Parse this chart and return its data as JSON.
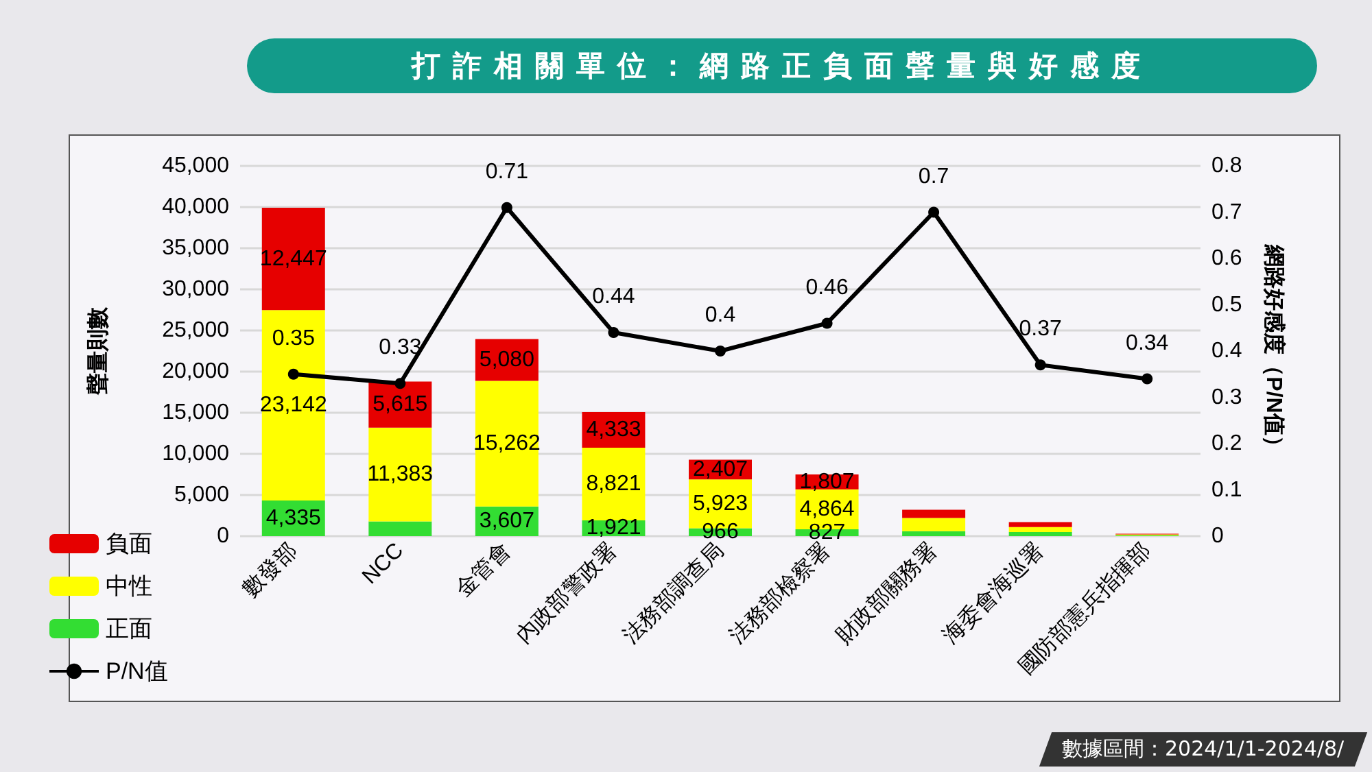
{
  "chart_data": {
    "type": "bar",
    "title": "打詐相關單位：網路正負面聲量與好感度",
    "ylabel": "聲量則數",
    "y2label": "網路好感度（P/N值）",
    "annotations": [
      "數據區間：2024/1/1-2024/8/"
    ],
    "categories": [
      "數發部",
      "NCC",
      "金管會",
      "內政部警政署",
      "法務部調查局",
      "法務部檢察署",
      "財政部關務署",
      "海委會海巡署",
      "國防部憲兵指揮部"
    ],
    "stacked": true,
    "series": [
      {
        "name": "正面",
        "color": "#33dd33",
        "values": [
          4335,
          1800,
          3607,
          1921,
          966,
          827,
          600,
          500,
          100
        ],
        "value_labels": [
          "4,335",
          null,
          "3,607",
          "1,921",
          "966",
          "827",
          null,
          null,
          null
        ]
      },
      {
        "name": "中性",
        "color": "#ffff00",
        "values": [
          23142,
          11383,
          15262,
          8821,
          5923,
          4864,
          1600,
          600,
          100
        ],
        "value_labels": [
          "23,142",
          "11,383",
          "15,262",
          "8,821",
          "5,923",
          "4,864",
          null,
          null,
          null
        ]
      },
      {
        "name": "負面",
        "color": "#e60000",
        "values": [
          12447,
          5615,
          5080,
          4333,
          2407,
          1807,
          1000,
          600,
          100
        ],
        "value_labels": [
          "12,447",
          "5,615",
          "5,080",
          "4,333",
          "2,407",
          "1,807",
          null,
          null,
          null
        ]
      },
      {
        "name": "P/N值",
        "type": "line",
        "axis": "y2",
        "color": "#000000",
        "marker": "circle",
        "values": [
          0.35,
          0.33,
          0.71,
          0.44,
          0.4,
          0.46,
          0.7,
          0.37,
          0.34
        ],
        "value_labels": [
          "0.35",
          "0.33",
          "0.71",
          "0.44",
          "0.4",
          "0.46",
          "0.7",
          "0.37",
          "0.34"
        ]
      }
    ],
    "ylim": [
      0,
      45000
    ],
    "yticks": [
      0,
      {
        "value": 5000,
        "label": "5,000"
      },
      {
        "value": 10000,
        "label": "10,000"
      },
      {
        "value": 15000,
        "label": "15,000"
      },
      {
        "value": 20000,
        "label": "20,000"
      },
      {
        "value": 25000,
        "label": "25,000"
      },
      {
        "value": 30000,
        "label": "30,000"
      },
      {
        "value": 35000,
        "label": "35,000"
      },
      {
        "value": 40000,
        "label": "40,000"
      },
      {
        "value": 45000,
        "label": "45,000"
      }
    ],
    "y2lim": [
      0,
      0.8
    ],
    "y2ticks": [
      0,
      0.1,
      0.2,
      0.3,
      0.4,
      0.5,
      0.6,
      0.7,
      0.8
    ],
    "grid": "y",
    "legend": "bottom left"
  }
}
